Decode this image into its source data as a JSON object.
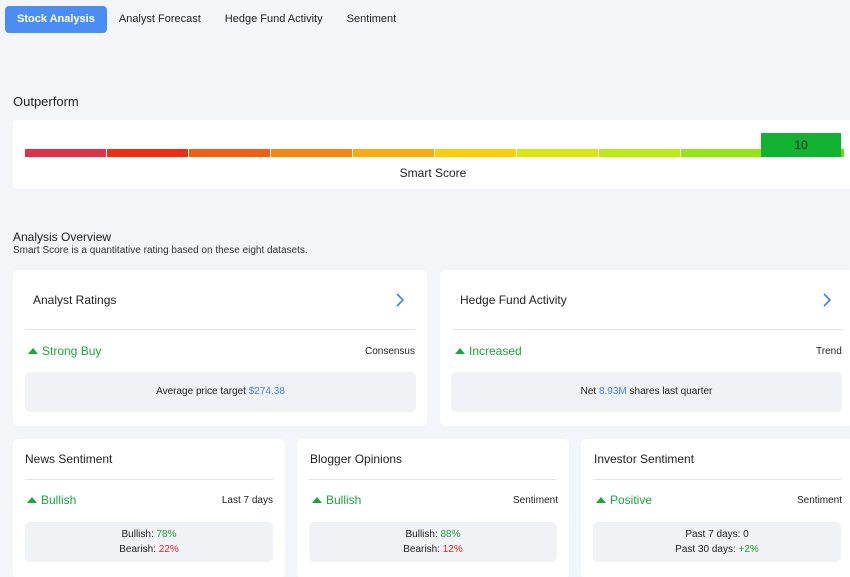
{
  "tabs": [
    {
      "label": "Stock Analysis",
      "active": true
    },
    {
      "label": "Analyst Forecast",
      "active": false
    },
    {
      "label": "Hedge Fund Activity",
      "active": false
    },
    {
      "label": "Sentiment",
      "active": false
    }
  ],
  "smart_score": {
    "rating": "Outperform",
    "value": "10",
    "label": "Smart Score",
    "segment_colors": [
      "#e0314b",
      "#f02d13",
      "#f35f12",
      "#f8860e",
      "#fbab0b",
      "#fbcf06",
      "#d9e80a",
      "#b9ec0f",
      "#93e613",
      "#6fd619"
    ],
    "score_box_color": "#11b232"
  },
  "overview": {
    "title": "Analysis Overview",
    "subtitle": "Smart Score is a quantitative rating based on these eight datasets."
  },
  "analyst_ratings": {
    "title": "Analyst Ratings",
    "signal": "Strong Buy",
    "right_label": "Consensus",
    "info_prefix": "Average price target ",
    "info_value": "$274.38"
  },
  "hedge_fund": {
    "title": "Hedge Fund Activity",
    "signal": "Increased",
    "right_label": "Trend",
    "info_prefix": "Net ",
    "info_value": "8.93M",
    "info_suffix": " shares last quarter"
  },
  "news_sentiment": {
    "title": "News Sentiment",
    "signal": "Bullish",
    "right_label": "Last 7 days",
    "line1_label": "Bullish: ",
    "line1_value": "78%",
    "line2_label": "Bearish: ",
    "line2_value": "22%"
  },
  "blogger_opinions": {
    "title": "Blogger Opinions",
    "signal": "Bullish",
    "right_label": "Sentiment",
    "line1_label": "Bullish: ",
    "line1_value": "88%",
    "line2_label": "Bearish: ",
    "line2_value": "12%"
  },
  "investor_sentiment": {
    "title": "Investor Sentiment",
    "signal": "Positive",
    "right_label": "Sentiment",
    "line1_label": "Past 7 days: ",
    "line1_value": "0",
    "line2_label": "Past 30 days: ",
    "line2_value": "+2%"
  },
  "colors": {
    "accent": "#4a8ef5",
    "positive": "#1aa53c",
    "negative": "#e0202b",
    "link": "#3b82f6"
  }
}
